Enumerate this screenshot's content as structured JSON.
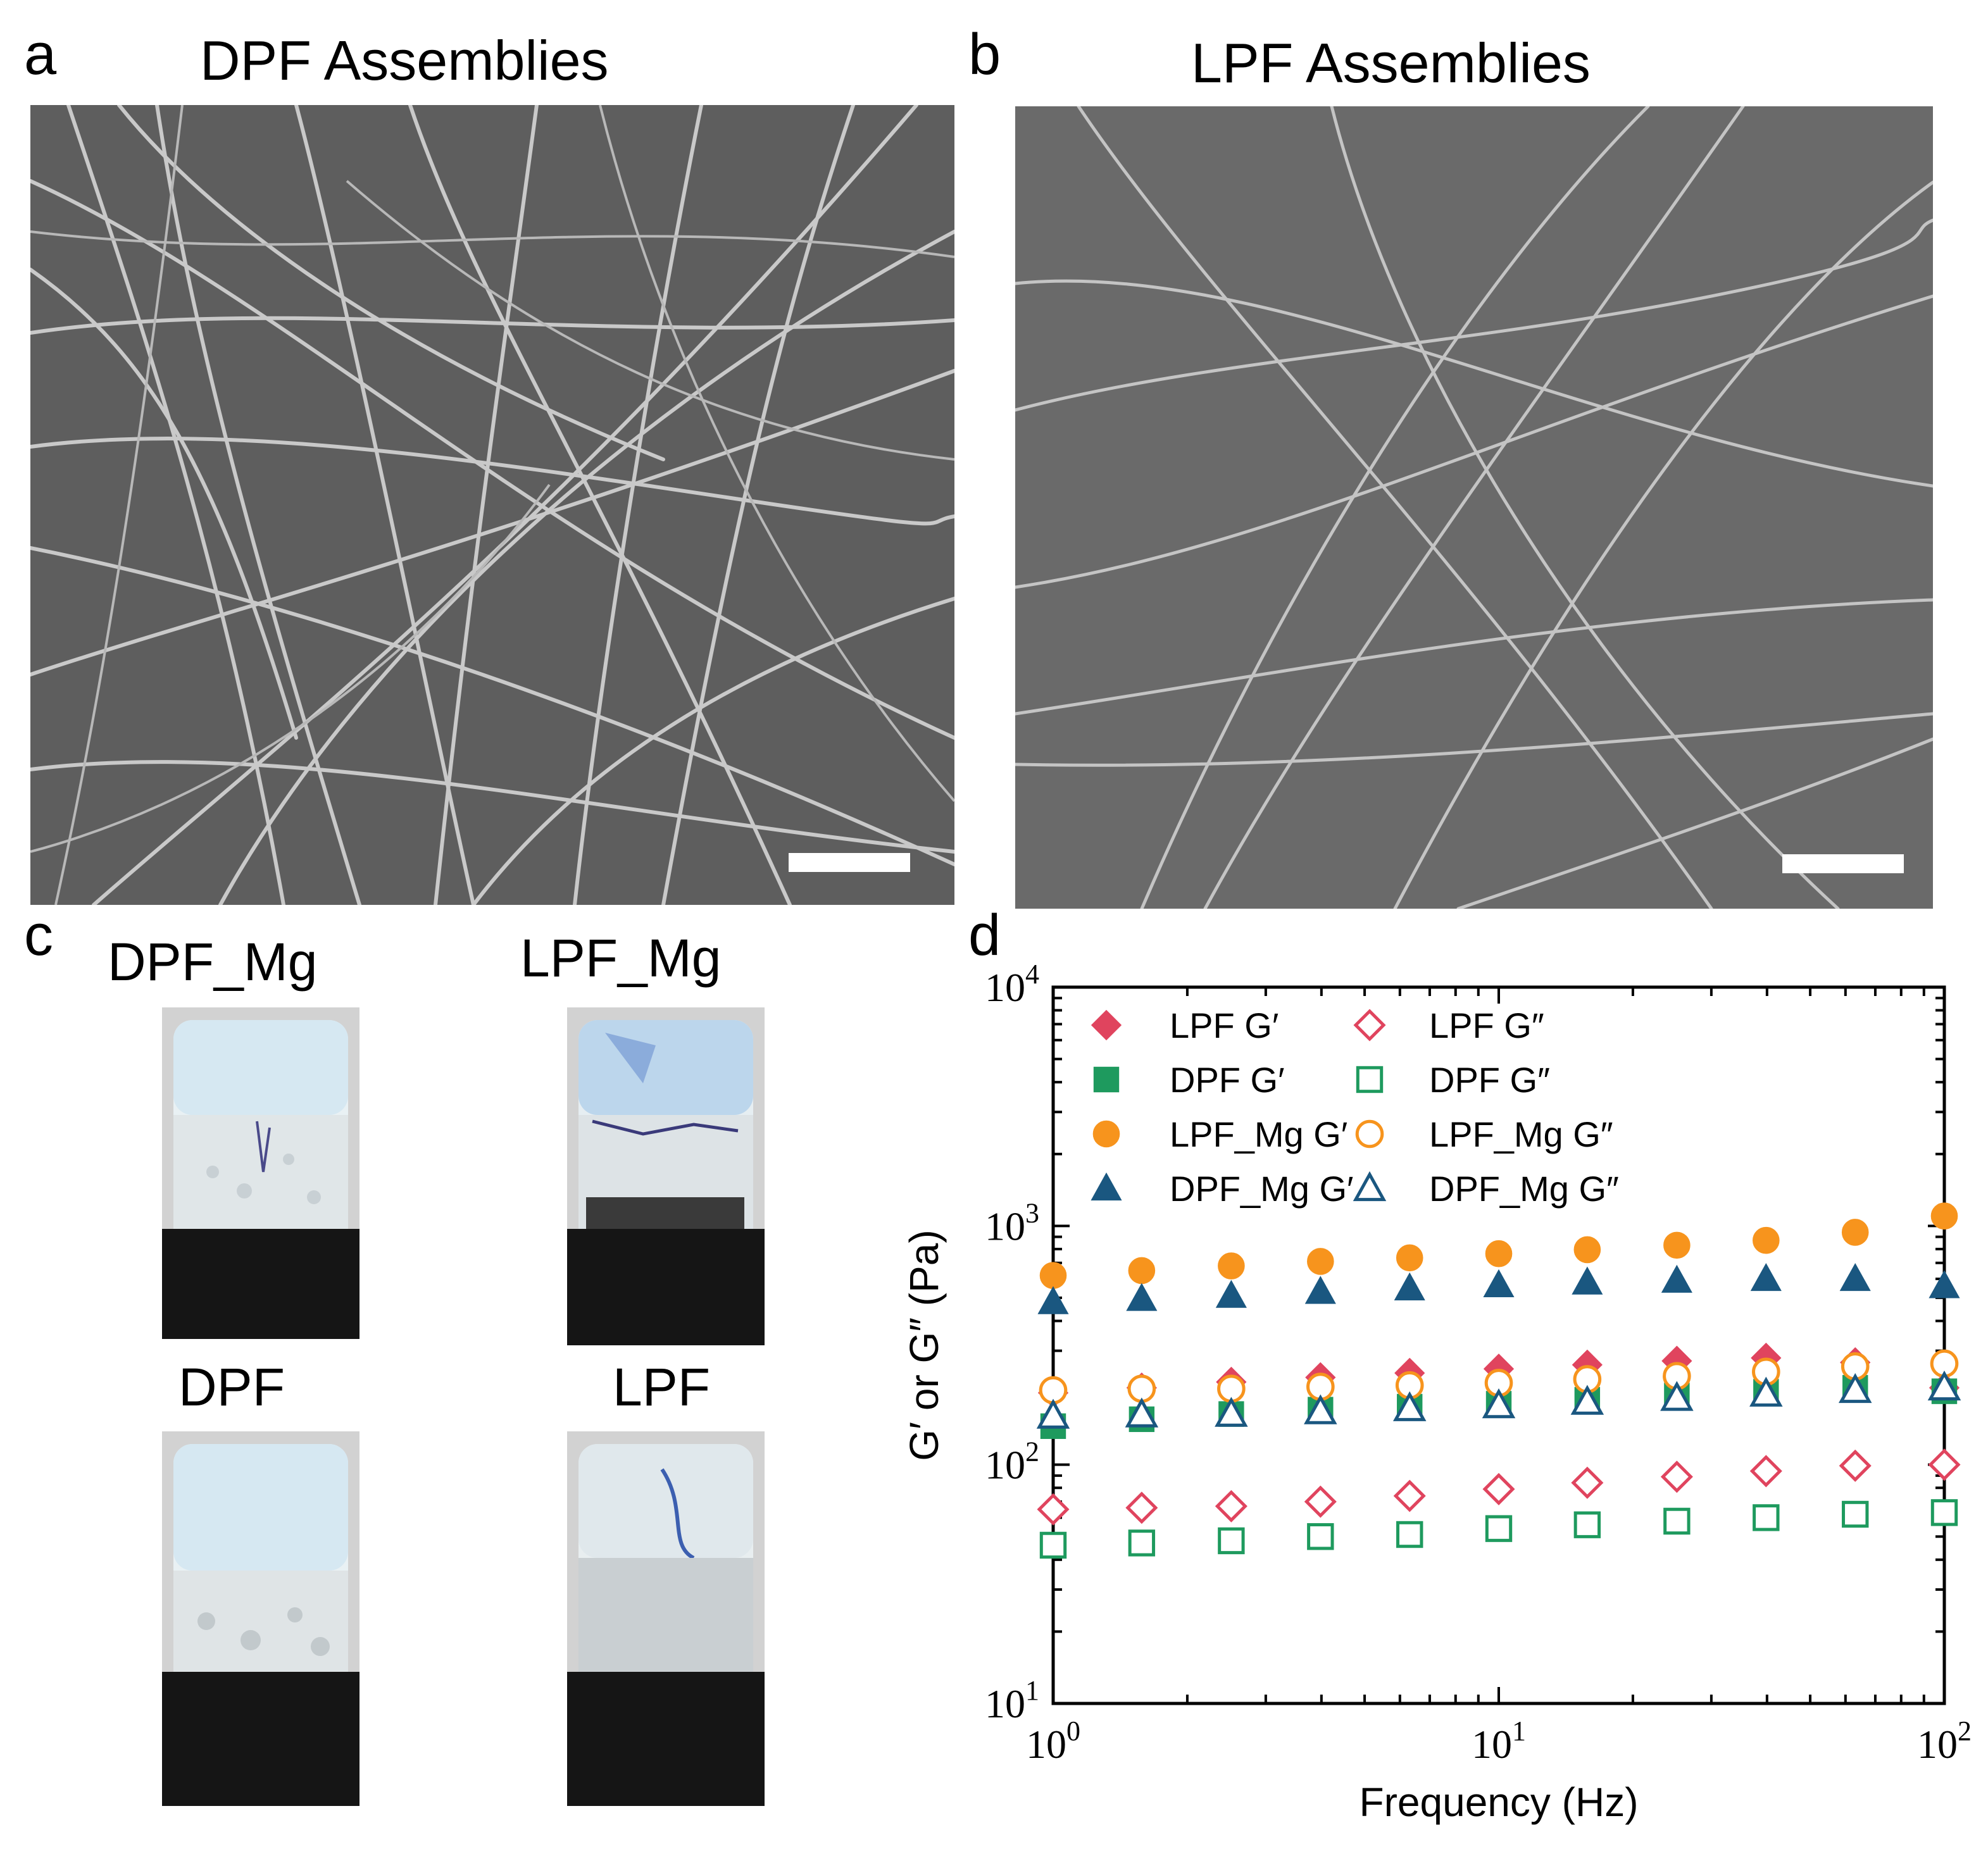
{
  "panels": {
    "a": {
      "letter": "a",
      "title": "DPF Assemblies"
    },
    "b": {
      "letter": "b",
      "title": "LPF Assemblies"
    },
    "c": {
      "letter": "c",
      "vials": [
        {
          "label": "DPF_Mg"
        },
        {
          "label": "LPF_Mg"
        },
        {
          "label": "DPF"
        },
        {
          "label": "LPF"
        }
      ]
    },
    "d": {
      "letter": "d"
    }
  },
  "colors": {
    "lpf": "#e0445e",
    "dpf": "#1e9a5e",
    "lpf_mg": "#f7941d",
    "dpf_mg": "#1a5780"
  },
  "chart_data": {
    "type": "scatter",
    "xscale": "log",
    "yscale": "log",
    "xlabel": "Frequency (Hz)",
    "ylabel": "G′ or G″ (Pa)",
    "xlim": [
      1,
      100
    ],
    "ylim": [
      10,
      10000
    ],
    "x_ticks": [
      {
        "value": 1,
        "base": "10",
        "exp": "0"
      },
      {
        "value": 10,
        "base": "10",
        "exp": "1"
      },
      {
        "value": 100,
        "base": "10",
        "exp": "2"
      }
    ],
    "y_ticks": [
      {
        "value": 10,
        "base": "10",
        "exp": "1"
      },
      {
        "value": 100,
        "base": "10",
        "exp": "2"
      },
      {
        "value": 1000,
        "base": "10",
        "exp": "3"
      },
      {
        "value": 10000,
        "base": "10",
        "exp": "4"
      }
    ],
    "x": [
      1,
      1.58,
      2.51,
      3.98,
      6.31,
      10,
      15.8,
      25.1,
      39.8,
      63.1,
      100
    ],
    "series": [
      {
        "name": "LPF G′",
        "marker": "diamond",
        "filled": true,
        "color_key": "lpf",
        "values": [
          200,
          210,
          222,
          232,
          242,
          252,
          262,
          272,
          280,
          268,
          210
        ]
      },
      {
        "name": "LPF G″",
        "marker": "diamond",
        "filled": false,
        "color_key": "lpf",
        "values": [
          65,
          66,
          67,
          70,
          74,
          79,
          84,
          89,
          94,
          99,
          100
        ]
      },
      {
        "name": "DPF G′",
        "marker": "square",
        "filled": true,
        "color_key": "dpf",
        "values": [
          145,
          155,
          163,
          170,
          175,
          180,
          187,
          195,
          202,
          210,
          203
        ]
      },
      {
        "name": "DPF G″",
        "marker": "square",
        "filled": false,
        "color_key": "dpf",
        "values": [
          46,
          47,
          48,
          50,
          51,
          54,
          56,
          58,
          60,
          62,
          63
        ]
      },
      {
        "name": "LPF_Mg G′",
        "marker": "circle",
        "filled": true,
        "color_key": "lpf_mg",
        "values": [
          620,
          650,
          680,
          710,
          735,
          765,
          795,
          830,
          870,
          940,
          1100
        ]
      },
      {
        "name": "LPF_Mg G″",
        "marker": "circle",
        "filled": false,
        "color_key": "lpf_mg",
        "values": [
          205,
          208,
          208,
          212,
          215,
          220,
          228,
          235,
          245,
          258,
          265
        ]
      },
      {
        "name": "DPF_Mg G′",
        "marker": "triangle",
        "filled": true,
        "color_key": "dpf_mg",
        "values": [
          480,
          495,
          510,
          530,
          548,
          565,
          580,
          590,
          600,
          600,
          560
        ]
      },
      {
        "name": "DPF_Mg G″",
        "marker": "triangle",
        "filled": false,
        "color_key": "dpf_mg",
        "values": [
          160,
          162,
          163,
          167,
          172,
          177,
          183,
          190,
          198,
          205,
          210
        ]
      }
    ]
  }
}
